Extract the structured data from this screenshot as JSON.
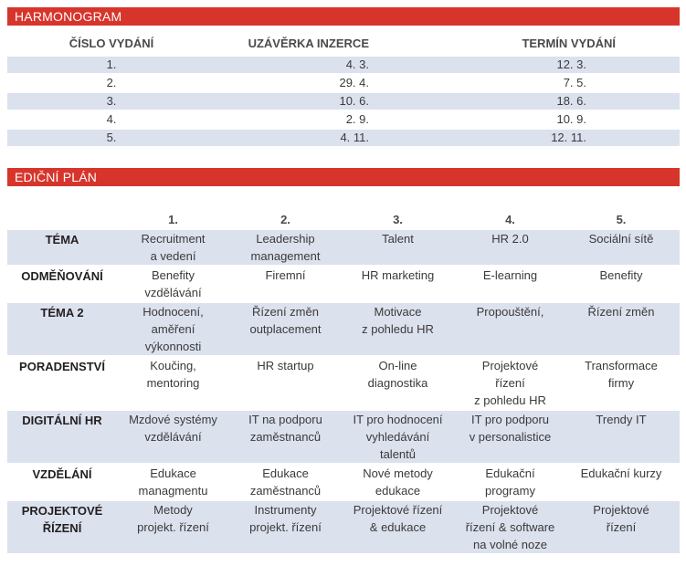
{
  "harmonogram": {
    "title": "HARMONOGRAM",
    "headers": [
      "ČÍSLO VYDÁNÍ",
      "UZÁVĚRKA INZERCE",
      "TERMÍN VYDÁNÍ"
    ],
    "rows": [
      [
        "1.",
        "4. 3.",
        "12. 3."
      ],
      [
        "2.",
        "29. 4.",
        "7. 5."
      ],
      [
        "3.",
        "10. 6.",
        "18. 6."
      ],
      [
        "4.",
        "2. 9.",
        "10. 9."
      ],
      [
        "5.",
        "4. 11.",
        "12. 11."
      ]
    ]
  },
  "edicni_plan": {
    "title": "EDIČNÍ PLÁN",
    "headers": [
      "",
      "1.",
      "2.",
      "3.",
      "4.",
      "5."
    ],
    "rows": [
      {
        "label": "TÉMA",
        "cells": [
          "Recruitment\na vedení",
          "Leadership\nmanagement",
          "Talent",
          "HR 2.0",
          "Sociální sítě"
        ]
      },
      {
        "label": "ODMĚŇOVÁNÍ",
        "cells": [
          "Benefity\nvzdělávání",
          "Firemní",
          "HR marketing",
          "E-learning",
          "Benefity"
        ]
      },
      {
        "label": "TÉMA 2",
        "cells": [
          "Hodnocení,\naměření\nvýkonnosti",
          "Řízení změn\noutplacement",
          "Motivace\nz pohledu HR",
          "Propouštění,",
          "Řízení změn"
        ]
      },
      {
        "label": "PORADENSTVÍ",
        "cells": [
          "Koučing,\nmentoring",
          "HR startup",
          "On-line\ndiagnostika",
          "Projektové\nřízení\nz pohledu HR",
          "Transformace\nfirmy"
        ]
      },
      {
        "label": "DIGITÁLNÍ HR",
        "cells": [
          "Mzdové systémy\nvzdělávání",
          "IT na podporu\nzaměstnanců",
          "IT pro hodnocení\nvyhledávání\ntalentů",
          "IT pro podporu\nv personalistice",
          "Trendy IT"
        ]
      },
      {
        "label": "VZDĚLÁNÍ",
        "cells": [
          "Edukace\nmanagmentu",
          "Edukace\nzaměstnanců",
          "Nové metody\nedukace",
          "Edukační\nprogramy",
          "Edukační kurzy"
        ]
      },
      {
        "label": "PROJEKTOVÉ\nŘÍZENÍ",
        "cells": [
          "Metody\nprojekt. řízení",
          "Instrumenty\nprojekt. řízení",
          "Projektové řízení\n& edukace",
          "Projektové\nřízení & software\nna volné noze",
          "Projektové\nřízení"
        ]
      }
    ]
  }
}
